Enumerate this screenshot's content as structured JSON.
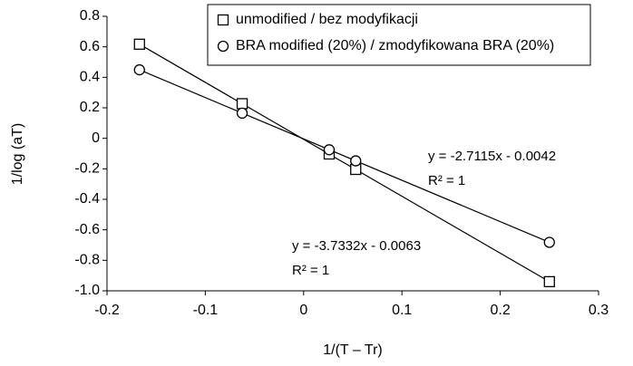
{
  "chart_data": {
    "type": "scatter",
    "xlabel": "1/(T – Tr)",
    "ylabel": "1/log (aT)",
    "xlim": [
      -0.2,
      0.3
    ],
    "xticks": [
      -0.2,
      -0.1,
      0,
      0.1,
      0.2,
      0.3
    ],
    "ylim": [
      -1,
      0.8
    ],
    "yticks": [
      0.8,
      0.6,
      0.4,
      0.2,
      0,
      -0.2,
      -0.4,
      -0.6,
      -0.8,
      {
        "value": -1,
        "label": "-1.0"
      }
    ],
    "grid": false,
    "legend": "top-right",
    "series": [
      {
        "name": "unmodified / bez modyfikacji",
        "color": "#000000",
        "marker": "square",
        "x": [
          -0.167,
          -0.0625,
          0.026,
          0.053,
          0.25
        ],
        "values": [
          0.617,
          0.227,
          -0.103,
          -0.204,
          -0.94
        ]
      },
      {
        "name": "BRA modified (20%) / zmodyfikowana BRA (20%)",
        "color": "#000000",
        "marker": "circle",
        "x": [
          -0.167,
          -0.0625,
          0.026,
          0.053,
          0.25
        ],
        "values": [
          0.449,
          0.165,
          -0.075,
          -0.148,
          -0.682
        ]
      }
    ],
    "annotations": [
      "y = -2.7115x - 0.0042",
      "R² = 1",
      "y = -3.7332x - 0.0063",
      "R² = 1"
    ]
  }
}
